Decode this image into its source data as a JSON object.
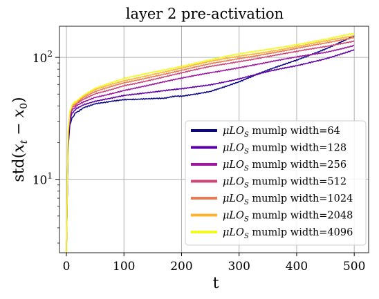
{
  "chart_data": {
    "type": "line",
    "title": "layer 2 pre-activation",
    "xlabel": "t",
    "ylabel": "std(x_t − x_0)",
    "ylabel_parts": {
      "lead": "std(",
      "x": "x",
      "sub_t": "t",
      "minus": " − ",
      "x0": "x",
      "sub_0": "0",
      "tail": ")"
    },
    "xlim": [
      -12,
      525
    ],
    "ylim": [
      2.5,
      180
    ],
    "yscale": "log",
    "grid": true,
    "legend_position": "lower-right",
    "x_ticks": [
      0,
      100,
      200,
      300,
      400,
      500
    ],
    "x_tick_labels": [
      "0",
      "100",
      "200",
      "300",
      "400",
      "500"
    ],
    "y_ticks": [
      10,
      100
    ],
    "y_tick_labels": [
      {
        "base": "10",
        "exp": "1"
      },
      {
        "base": "10",
        "exp": "2"
      }
    ],
    "legend_label_parts": {
      "mu": "μ",
      "lo": "LO",
      "sub": "S",
      "rest": " mumlp width="
    },
    "series": [
      {
        "name": "μLO_S mumlp width=64",
        "width_value": "64",
        "color": "#0c0786",
        "x": [
          0,
          3,
          6,
          10,
          15,
          20,
          30,
          50,
          80,
          100,
          120,
          150,
          175,
          200,
          250,
          300,
          350,
          400,
          450,
          500
        ],
        "y": [
          2.5,
          18,
          28,
          32,
          34.5,
          36,
          39,
          42,
          44,
          45,
          45,
          45.5,
          47,
          48,
          53,
          63,
          78,
          95,
          118,
          150
        ]
      },
      {
        "name": "μLO_S mumlp width=128",
        "width_value": "128",
        "color": "#5c01a6",
        "x": [
          0,
          3,
          6,
          10,
          15,
          20,
          30,
          50,
          80,
          100,
          120,
          150,
          200,
          250,
          300,
          350,
          400,
          450,
          500
        ],
        "y": [
          2.5,
          20,
          30,
          35,
          37,
          38.5,
          41,
          44,
          47,
          49,
          50,
          51.5,
          55,
          60,
          67,
          76,
          85,
          98,
          116
        ]
      },
      {
        "name": "μLO_S mumlp width=256",
        "width_value": "256",
        "color": "#9c179e",
        "x": [
          0,
          3,
          6,
          10,
          15,
          20,
          30,
          50,
          80,
          100,
          150,
          200,
          250,
          300,
          350,
          400,
          450,
          500
        ],
        "y": [
          2.5,
          22,
          32,
          37,
          39,
          40.5,
          43,
          47,
          51,
          54,
          60,
          67,
          75,
          83,
          91,
          100,
          110,
          126
        ]
      },
      {
        "name": "μLO_S mumlp width=512",
        "width_value": "512",
        "color": "#cc4778",
        "x": [
          0,
          3,
          6,
          10,
          15,
          20,
          30,
          50,
          80,
          100,
          150,
          200,
          250,
          300,
          350,
          400,
          450,
          500
        ],
        "y": [
          2.5,
          23,
          34,
          38.5,
          40.5,
          42,
          45,
          50,
          55,
          59,
          66,
          74,
          84,
          93,
          102,
          111,
          122,
          137
        ]
      },
      {
        "name": "μLO_S mumlp width=1024",
        "width_value": "1024",
        "color": "#ed7953",
        "x": [
          0,
          3,
          6,
          10,
          15,
          20,
          30,
          50,
          80,
          100,
          150,
          200,
          250,
          300,
          350,
          400,
          450,
          500
        ],
        "y": [
          2.5,
          24,
          35,
          39.5,
          41.5,
          43,
          46.5,
          52,
          58,
          62,
          70,
          78,
          88,
          98,
          108,
          118,
          130,
          146
        ]
      },
      {
        "name": "μLO_S mumlp width=2048",
        "width_value": "2048",
        "color": "#fdb32f",
        "x": [
          0,
          3,
          6,
          10,
          15,
          20,
          30,
          50,
          80,
          100,
          150,
          200,
          250,
          300,
          350,
          400,
          450,
          500
        ],
        "y": [
          2.5,
          24.5,
          35.5,
          40,
          42,
          44,
          48,
          54,
          60,
          64,
          73,
          82,
          92,
          102,
          112,
          123,
          135,
          150
        ]
      },
      {
        "name": "μLO_S mumlp width=4096",
        "width_value": "4096",
        "color": "#f0f921",
        "x": [
          0,
          3,
          6,
          10,
          15,
          20,
          30,
          50,
          80,
          100,
          150,
          200,
          250,
          300,
          350,
          400,
          450,
          500
        ],
        "y": [
          2.5,
          25,
          36,
          41,
          43,
          45,
          49,
          55.5,
          62,
          66.5,
          76,
          85,
          95,
          106,
          117,
          128,
          140,
          156
        ]
      }
    ]
  }
}
